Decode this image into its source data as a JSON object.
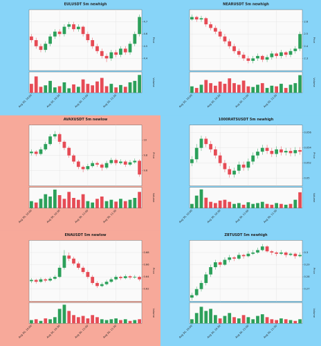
{
  "chart_data": [
    {
      "type": "candlestick",
      "title": "EULUSDT 5m newhigh",
      "background": "#87d4f8",
      "ylabel": "Price",
      "volume_label": "Volume",
      "up_color": "#2ca05a",
      "down_color": "#e64b55",
      "grid": true,
      "ylim": [
        4.3,
        4.8
      ],
      "yticks": [
        4.4,
        4.5,
        4.6,
        4.7
      ],
      "xticks": [
        {
          "value": 0,
          "label": "Aug 30, 10:00"
        },
        {
          "value": 6,
          "label": "Aug 30, 10:30"
        },
        {
          "value": 12,
          "label": "Aug 30, 11:00"
        },
        {
          "value": 18,
          "label": "Aug 30, 11:30"
        }
      ],
      "ohlc": [
        [
          4.58,
          4.6,
          4.53,
          4.55
        ],
        [
          4.55,
          4.57,
          4.48,
          4.5
        ],
        [
          4.5,
          4.52,
          4.45,
          4.47
        ],
        [
          4.47,
          4.54,
          4.45,
          4.52
        ],
        [
          4.52,
          4.6,
          4.5,
          4.58
        ],
        [
          4.58,
          4.64,
          4.56,
          4.62
        ],
        [
          4.62,
          4.64,
          4.58,
          4.6
        ],
        [
          4.6,
          4.68,
          4.58,
          4.66
        ],
        [
          4.66,
          4.7,
          4.64,
          4.68
        ],
        [
          4.68,
          4.7,
          4.62,
          4.64
        ],
        [
          4.64,
          4.68,
          4.62,
          4.66
        ],
        [
          4.66,
          4.67,
          4.58,
          4.6
        ],
        [
          4.6,
          4.62,
          4.53,
          4.55
        ],
        [
          4.55,
          4.57,
          4.48,
          4.5
        ],
        [
          4.5,
          4.52,
          4.44,
          4.46
        ],
        [
          4.46,
          4.48,
          4.4,
          4.42
        ],
        [
          4.42,
          4.44,
          4.37,
          4.4
        ],
        [
          4.4,
          4.47,
          4.38,
          4.45
        ],
        [
          4.45,
          4.47,
          4.41,
          4.43
        ],
        [
          4.43,
          4.5,
          4.41,
          4.48
        ],
        [
          4.48,
          4.5,
          4.43,
          4.45
        ],
        [
          4.45,
          4.54,
          4.43,
          4.52
        ],
        [
          4.52,
          4.62,
          4.5,
          4.6
        ],
        [
          4.6,
          4.76,
          4.58,
          4.74
        ]
      ],
      "volume": [
        30,
        55,
        20,
        25,
        40,
        18,
        22,
        35,
        15,
        28,
        20,
        45,
        30,
        25,
        38,
        50,
        22,
        30,
        18,
        26,
        20,
        35,
        40,
        60
      ],
      "volume_ylim": [
        0,
        70
      ]
    },
    {
      "type": "candlestick",
      "title": "NEARUSDT 5m newhigh",
      "background": "#87d4f8",
      "ylabel": "Price",
      "volume_label": "Volume",
      "up_color": "#2ca05a",
      "down_color": "#e64b55",
      "grid": true,
      "ylim": [
        2.2,
        2.7
      ],
      "yticks": [
        2.3,
        2.4,
        2.5,
        2.6
      ],
      "xticks": [
        {
          "value": 0,
          "label": "Aug 30, 10:00"
        },
        {
          "value": 6,
          "label": "Aug 30, 10:30"
        },
        {
          "value": 12,
          "label": "Aug 30, 11:00"
        },
        {
          "value": 18,
          "label": "Aug 30, 11:30"
        }
      ],
      "ohlc": [
        [
          2.62,
          2.66,
          2.61,
          2.64
        ],
        [
          2.64,
          2.65,
          2.6,
          2.62
        ],
        [
          2.62,
          2.65,
          2.6,
          2.63
        ],
        [
          2.63,
          2.64,
          2.56,
          2.58
        ],
        [
          2.58,
          2.6,
          2.53,
          2.55
        ],
        [
          2.55,
          2.57,
          2.5,
          2.52
        ],
        [
          2.52,
          2.54,
          2.46,
          2.48
        ],
        [
          2.48,
          2.5,
          2.42,
          2.44
        ],
        [
          2.44,
          2.46,
          2.38,
          2.4
        ],
        [
          2.4,
          2.42,
          2.34,
          2.36
        ],
        [
          2.36,
          2.38,
          2.31,
          2.33
        ],
        [
          2.33,
          2.35,
          2.28,
          2.3
        ],
        [
          2.3,
          2.32,
          2.26,
          2.28
        ],
        [
          2.28,
          2.32,
          2.26,
          2.3
        ],
        [
          2.3,
          2.34,
          2.28,
          2.32
        ],
        [
          2.32,
          2.33,
          2.27,
          2.29
        ],
        [
          2.29,
          2.33,
          2.27,
          2.31
        ],
        [
          2.31,
          2.36,
          2.29,
          2.34
        ],
        [
          2.34,
          2.35,
          2.3,
          2.32
        ],
        [
          2.32,
          2.37,
          2.3,
          2.35
        ],
        [
          2.35,
          2.36,
          2.31,
          2.33
        ],
        [
          2.33,
          2.38,
          2.31,
          2.36
        ],
        [
          2.36,
          2.4,
          2.34,
          2.38
        ],
        [
          2.38,
          2.52,
          2.36,
          2.5
        ]
      ],
      "volume": [
        20,
        15,
        25,
        40,
        30,
        22,
        35,
        28,
        45,
        30,
        25,
        38,
        20,
        18,
        25,
        30,
        15,
        22,
        20,
        28,
        15,
        25,
        30,
        55
      ],
      "volume_ylim": [
        0,
        65
      ]
    },
    {
      "type": "candlestick",
      "title": "AVAXUSDT 5m newlow",
      "background": "#f7a99a",
      "ylabel": "Price",
      "volume_label": "Volume",
      "up_color": "#2ca05a",
      "down_color": "#e64b55",
      "grid": true,
      "ylim": [
        9.4,
        10.2
      ],
      "yticks": [
        9.6,
        9.8,
        10
      ],
      "xticks": [
        {
          "value": 0,
          "label": "Aug 30, 10:00"
        },
        {
          "value": 6,
          "label": "Aug 30, 10:30"
        },
        {
          "value": 12,
          "label": "Aug 30, 11:00"
        },
        {
          "value": 18,
          "label": "Aug 30, 11:30"
        }
      ],
      "ohlc": [
        [
          9.83,
          9.88,
          9.8,
          9.85
        ],
        [
          9.85,
          9.87,
          9.79,
          9.82
        ],
        [
          9.82,
          9.91,
          9.8,
          9.88
        ],
        [
          9.88,
          9.98,
          9.86,
          9.95
        ],
        [
          9.95,
          10.08,
          9.93,
          10.05
        ],
        [
          10.05,
          10.12,
          10.02,
          10.08
        ],
        [
          10.08,
          10.1,
          9.95,
          9.98
        ],
        [
          9.98,
          10.0,
          9.87,
          9.9
        ],
        [
          9.9,
          9.92,
          9.77,
          9.8
        ],
        [
          9.8,
          9.82,
          9.69,
          9.72
        ],
        [
          9.72,
          9.74,
          9.62,
          9.65
        ],
        [
          9.65,
          9.67,
          9.58,
          9.62
        ],
        [
          9.62,
          9.69,
          9.6,
          9.66
        ],
        [
          9.66,
          9.73,
          9.64,
          9.7
        ],
        [
          9.7,
          9.72,
          9.65,
          9.68
        ],
        [
          9.68,
          9.7,
          9.6,
          9.64
        ],
        [
          9.64,
          9.73,
          9.62,
          9.7
        ],
        [
          9.7,
          9.77,
          9.68,
          9.74
        ],
        [
          9.74,
          9.76,
          9.67,
          9.7
        ],
        [
          9.7,
          9.75,
          9.68,
          9.72
        ],
        [
          9.72,
          9.74,
          9.65,
          9.68
        ],
        [
          9.68,
          9.74,
          9.66,
          9.71
        ],
        [
          9.71,
          9.76,
          9.69,
          9.73
        ],
        [
          9.73,
          9.75,
          9.52,
          9.55
        ]
      ],
      "volume": [
        15,
        12,
        20,
        30,
        25,
        40,
        28,
        20,
        35,
        22,
        18,
        30,
        15,
        12,
        20,
        25,
        15,
        18,
        14,
        20,
        15,
        18,
        22,
        35
      ],
      "volume_ylim": [
        0,
        45
      ]
    },
    {
      "type": "candlestick",
      "title": "1000RATSUSDT 5m newhigh",
      "background": "#87d4f8",
      "ylabel": "Price",
      "volume_label": "Volume",
      "up_color": "#2ca05a",
      "down_color": "#e64b55",
      "grid": true,
      "ylim": [
        0.049,
        0.057
      ],
      "yticks": [
        0.05,
        0.052,
        0.054,
        0.056
      ],
      "xticks": [
        {
          "value": 0,
          "label": "Aug 30, 10:00"
        },
        {
          "value": 6,
          "label": "Aug 30, 10:30"
        },
        {
          "value": 12,
          "label": "Aug 30, 11:00"
        },
        {
          "value": 18,
          "label": "Aug 30, 11:30"
        }
      ],
      "ohlc": [
        [
          0.052,
          0.0529,
          0.0516,
          0.0525
        ],
        [
          0.0525,
          0.0545,
          0.0521,
          0.054
        ],
        [
          0.054,
          0.0556,
          0.0536,
          0.0552
        ],
        [
          0.0552,
          0.0555,
          0.0541,
          0.0545
        ],
        [
          0.0545,
          0.0549,
          0.0534,
          0.0538
        ],
        [
          0.0538,
          0.0542,
          0.0526,
          0.053
        ],
        [
          0.053,
          0.0534,
          0.0516,
          0.052
        ],
        [
          0.052,
          0.0524,
          0.0508,
          0.0512
        ],
        [
          0.0512,
          0.0516,
          0.0501,
          0.0505
        ],
        [
          0.0505,
          0.0514,
          0.0501,
          0.051
        ],
        [
          0.051,
          0.0522,
          0.0506,
          0.0518
        ],
        [
          0.0518,
          0.0522,
          0.051,
          0.0514
        ],
        [
          0.0514,
          0.0526,
          0.051,
          0.0522
        ],
        [
          0.0522,
          0.0534,
          0.0518,
          0.053
        ],
        [
          0.053,
          0.0539,
          0.0526,
          0.0535
        ],
        [
          0.0535,
          0.0544,
          0.0531,
          0.054
        ],
        [
          0.054,
          0.0544,
          0.0532,
          0.0536
        ],
        [
          0.0536,
          0.054,
          0.0528,
          0.0532
        ],
        [
          0.0532,
          0.0542,
          0.0528,
          0.0538
        ],
        [
          0.0538,
          0.0542,
          0.053,
          0.0534
        ],
        [
          0.0534,
          0.054,
          0.053,
          0.0536
        ],
        [
          0.0536,
          0.054,
          0.0529,
          0.0533
        ],
        [
          0.0533,
          0.0541,
          0.0529,
          0.0537
        ],
        [
          0.0537,
          0.0541,
          0.0531,
          0.0535
        ]
      ],
      "volume": [
        10,
        30,
        45,
        25,
        15,
        12,
        18,
        20,
        15,
        10,
        12,
        8,
        14,
        10,
        12,
        15,
        10,
        8,
        12,
        10,
        8,
        10,
        20,
        38
      ],
      "volume_ylim": [
        0,
        50
      ]
    },
    {
      "type": "candlestick",
      "title": "ENAUSDT 5m newlow",
      "background": "#f7a99a",
      "ylabel": "Price",
      "volume_label": "Volume",
      "up_color": "#2ca05a",
      "down_color": "#e64b55",
      "grid": true,
      "ylim": [
        0.6,
        0.7
      ],
      "yticks": [
        0.62,
        0.64,
        0.66,
        0.68
      ],
      "xticks": [
        {
          "value": 0,
          "label": "Aug 30, 10:00"
        },
        {
          "value": 6,
          "label": "Aug 30, 10:30"
        },
        {
          "value": 12,
          "label": "Aug 30, 11:00"
        },
        {
          "value": 18,
          "label": "Aug 30, 11:30"
        }
      ],
      "ohlc": [
        [
          0.633,
          0.638,
          0.63,
          0.635
        ],
        [
          0.635,
          0.637,
          0.629,
          0.632
        ],
        [
          0.632,
          0.639,
          0.63,
          0.636
        ],
        [
          0.636,
          0.638,
          0.631,
          0.634
        ],
        [
          0.634,
          0.64,
          0.632,
          0.637
        ],
        [
          0.637,
          0.643,
          0.635,
          0.64
        ],
        [
          0.64,
          0.659,
          0.638,
          0.655
        ],
        [
          0.655,
          0.684,
          0.652,
          0.675
        ],
        [
          0.675,
          0.68,
          0.666,
          0.67
        ],
        [
          0.67,
          0.673,
          0.659,
          0.662
        ],
        [
          0.662,
          0.665,
          0.652,
          0.655
        ],
        [
          0.655,
          0.658,
          0.645,
          0.648
        ],
        [
          0.648,
          0.651,
          0.637,
          0.64
        ],
        [
          0.64,
          0.643,
          0.627,
          0.63
        ],
        [
          0.63,
          0.633,
          0.622,
          0.625
        ],
        [
          0.625,
          0.631,
          0.623,
          0.628
        ],
        [
          0.628,
          0.635,
          0.626,
          0.632
        ],
        [
          0.632,
          0.639,
          0.63,
          0.636
        ],
        [
          0.636,
          0.643,
          0.634,
          0.64
        ],
        [
          0.64,
          0.642,
          0.635,
          0.638
        ],
        [
          0.638,
          0.644,
          0.636,
          0.641
        ],
        [
          0.641,
          0.643,
          0.636,
          0.639
        ],
        [
          0.639,
          0.643,
          0.637,
          0.64
        ],
        [
          0.64,
          0.642,
          0.633,
          0.636
        ]
      ],
      "volume": [
        8,
        10,
        6,
        12,
        10,
        15,
        35,
        45,
        30,
        20,
        15,
        18,
        12,
        20,
        15,
        10,
        8,
        10,
        12,
        8,
        10,
        6,
        8,
        10
      ],
      "volume_ylim": [
        0,
        50
      ]
    },
    {
      "type": "candlestick",
      "title": "ZBTUSDT 5m newhigh",
      "background": "#87d4f8",
      "ylabel": "Price",
      "volume_label": "Volume",
      "up_color": "#2ca05a",
      "down_color": "#e64b55",
      "grid": true,
      "ylim": [
        0.26,
        0.31
      ],
      "yticks": [
        0.27,
        0.28,
        0.29,
        0.3
      ],
      "xticks": [
        {
          "value": 0,
          "label": "Aug 30, 10:00"
        },
        {
          "value": 6,
          "label": "Aug 30, 10:30"
        },
        {
          "value": 12,
          "label": "Aug 30, 11:00"
        },
        {
          "value": 18,
          "label": "Aug 30, 11:30"
        }
      ],
      "ohlc": [
        [
          0.263,
          0.267,
          0.261,
          0.265
        ],
        [
          0.265,
          0.272,
          0.264,
          0.27
        ],
        [
          0.27,
          0.277,
          0.268,
          0.275
        ],
        [
          0.275,
          0.284,
          0.273,
          0.282
        ],
        [
          0.282,
          0.29,
          0.28,
          0.288
        ],
        [
          0.288,
          0.294,
          0.286,
          0.292
        ],
        [
          0.292,
          0.293,
          0.288,
          0.29
        ],
        [
          0.29,
          0.296,
          0.289,
          0.294
        ],
        [
          0.294,
          0.298,
          0.292,
          0.296
        ],
        [
          0.296,
          0.297,
          0.293,
          0.295
        ],
        [
          0.295,
          0.3,
          0.294,
          0.298
        ],
        [
          0.298,
          0.299,
          0.295,
          0.297
        ],
        [
          0.297,
          0.301,
          0.296,
          0.299
        ],
        [
          0.299,
          0.302,
          0.298,
          0.3
        ],
        [
          0.3,
          0.304,
          0.299,
          0.302
        ],
        [
          0.302,
          0.307,
          0.301,
          0.305
        ],
        [
          0.305,
          0.306,
          0.3,
          0.301
        ],
        [
          0.301,
          0.302,
          0.298,
          0.3
        ],
        [
          0.3,
          0.301,
          0.297,
          0.299
        ],
        [
          0.299,
          0.302,
          0.298,
          0.3
        ],
        [
          0.3,
          0.301,
          0.296,
          0.298
        ],
        [
          0.298,
          0.3,
          0.297,
          0.299
        ],
        [
          0.299,
          0.3,
          0.295,
          0.297
        ],
        [
          0.297,
          0.3,
          0.296,
          0.298
        ]
      ],
      "volume": [
        10,
        25,
        40,
        30,
        35,
        20,
        12,
        18,
        25,
        15,
        12,
        20,
        15,
        10,
        18,
        22,
        15,
        10,
        8,
        12,
        10,
        8,
        6,
        10
      ],
      "volume_ylim": [
        0,
        50
      ]
    }
  ]
}
